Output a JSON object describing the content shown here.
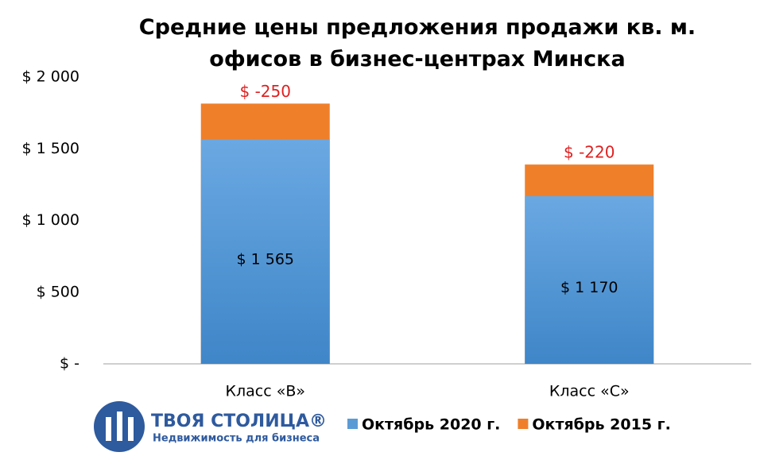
{
  "chart_data": {
    "type": "bar",
    "layout": "overlap",
    "title": "Средние цены предложения продажи кв. м. офисов в бизнес-центрах Минска",
    "categories": [
      "Класс «В»",
      "Класс «С»"
    ],
    "series": [
      {
        "name": "Октябрь 2015 г.",
        "color": "#f07f2a",
        "values": [
          1815,
          1390
        ]
      },
      {
        "name": "Октябрь 2020 г.",
        "color": "#5b9bd5",
        "values": [
          1565,
          1170
        ],
        "value_labels": [
          "$ 1 565",
          "$ 1 170"
        ]
      }
    ],
    "annotations": [
      "$ -250",
      "$ -220"
    ],
    "legend_order": [
      1,
      0
    ],
    "ylim": [
      0,
      2000
    ],
    "yticks": [
      {
        "value": 0,
        "label": "$ -"
      },
      {
        "value": 500,
        "label": "$  500"
      },
      {
        "value": 1000,
        "label": "$ 1 000"
      },
      {
        "value": 1500,
        "label": "$ 1 500"
      },
      {
        "value": 2000,
        "label": "$ 2 000"
      }
    ],
    "grid": false
  },
  "logo": {
    "name": "ТВОЯ СТОЛИЦА®",
    "tagline": "Недвижимость для бизнеса"
  }
}
